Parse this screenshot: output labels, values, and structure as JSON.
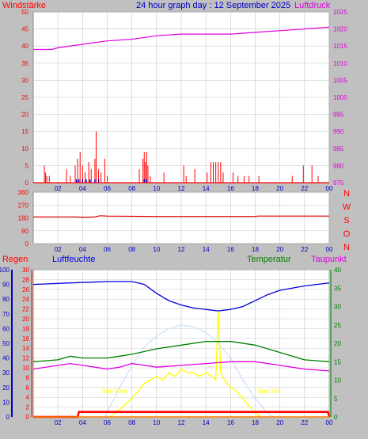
{
  "header": {
    "left_label": "Windstärke",
    "title": "24 hour graph day : 12 September 2025",
    "right_label": "Luftdruck"
  },
  "colors": {
    "background": "#c0c0c0",
    "plot_bg": "#ffffff",
    "grid": "#c8c8c8",
    "wind": "#ff0000",
    "gust": "#0000c8",
    "pressure": "#e000e0",
    "direction": "#e00000",
    "humidity": "#0000e0",
    "temperature": "#008000",
    "dewpoint": "#e000e0",
    "sun": "#ffff00",
    "sun_curve": "#c8e0ff",
    "rain": "#ff0000",
    "title": "#0000c8"
  },
  "chart_data": [
    {
      "type": "bar",
      "name": "wind",
      "ylabel": "Windstärke",
      "y2label": "Luftdruck",
      "ylim": [
        0,
        50
      ],
      "yticks": [
        "0",
        "5",
        "10",
        "15",
        "20",
        "25",
        "30",
        "35",
        "40",
        "45",
        "50"
      ],
      "y2lim": [
        975,
        1025
      ],
      "y2ticks": [
        "975",
        "980",
        "985",
        "990",
        "995",
        "1000",
        "1005",
        "1010",
        "1015",
        "1020",
        "1025"
      ],
      "xticks": [
        "02",
        "04",
        "06",
        "08",
        "10",
        "12",
        "14",
        "16",
        "18",
        "20",
        "22",
        "00"
      ],
      "wind_bars": [
        [
          0.9,
          5
        ],
        [
          1.0,
          3
        ],
        [
          1.1,
          2
        ],
        [
          1.3,
          2
        ],
        [
          2.7,
          4
        ],
        [
          3.0,
          2
        ],
        [
          3.4,
          5
        ],
        [
          3.6,
          7
        ],
        [
          3.8,
          9
        ],
        [
          4.0,
          5
        ],
        [
          4.2,
          3
        ],
        [
          4.5,
          6
        ],
        [
          4.7,
          4
        ],
        [
          5.0,
          7
        ],
        [
          5.1,
          15
        ],
        [
          5.3,
          4
        ],
        [
          5.5,
          3
        ],
        [
          5.8,
          7
        ],
        [
          6.0,
          2
        ],
        [
          8.6,
          4
        ],
        [
          8.9,
          7
        ],
        [
          9.0,
          9
        ],
        [
          9.1,
          6
        ],
        [
          9.2,
          9
        ],
        [
          9.3,
          5
        ],
        [
          9.5,
          2
        ],
        [
          10.6,
          3
        ],
        [
          12.2,
          5
        ],
        [
          12.4,
          2
        ],
        [
          13.1,
          4
        ],
        [
          14.1,
          3
        ],
        [
          14.4,
          6
        ],
        [
          14.6,
          6
        ],
        [
          14.8,
          6
        ],
        [
          15.0,
          6
        ],
        [
          15.2,
          6
        ],
        [
          15.4,
          3
        ],
        [
          16.2,
          3
        ],
        [
          16.6,
          2
        ],
        [
          17.1,
          2
        ],
        [
          17.5,
          2
        ],
        [
          18.3,
          2
        ],
        [
          21.0,
          2
        ],
        [
          21.9,
          5
        ],
        [
          22.6,
          5
        ],
        [
          23.1,
          2
        ]
      ],
      "gust_points": [
        [
          3.5,
          1
        ],
        [
          3.7,
          1
        ],
        [
          4.0,
          1
        ],
        [
          4.3,
          1
        ],
        [
          4.6,
          1
        ],
        [
          5.0,
          1
        ],
        [
          5.3,
          1
        ],
        [
          9.0,
          1
        ],
        [
          9.2,
          1
        ]
      ],
      "pressure": [
        [
          0,
          1014
        ],
        [
          1.5,
          1014
        ],
        [
          2,
          1014.5
        ],
        [
          4,
          1015.5
        ],
        [
          6,
          1016.5
        ],
        [
          8,
          1017
        ],
        [
          10,
          1018
        ],
        [
          12,
          1018.5
        ],
        [
          14,
          1018.5
        ],
        [
          16,
          1018.5
        ],
        [
          18,
          1019
        ],
        [
          20,
          1019.5
        ],
        [
          22,
          1020
        ],
        [
          24,
          1020.5
        ]
      ]
    },
    {
      "type": "line",
      "name": "wind-direction",
      "ylim": [
        0,
        360
      ],
      "yticks": [
        "0",
        "90",
        "180",
        "270",
        "360"
      ],
      "direction_labels": [
        "N",
        "W",
        "S",
        "O",
        "N"
      ],
      "xticks": [
        "02",
        "04",
        "06",
        "08",
        "10",
        "12",
        "14",
        "16",
        "18",
        "20",
        "22",
        "00"
      ],
      "direction": [
        [
          0,
          187
        ],
        [
          3.5,
          187
        ],
        [
          4.0,
          185
        ],
        [
          5.0,
          187
        ],
        [
          5.4,
          195
        ],
        [
          6,
          193
        ],
        [
          10,
          190
        ],
        [
          14,
          190
        ],
        [
          18,
          190
        ],
        [
          18.2,
          193
        ],
        [
          24,
          193
        ]
      ]
    },
    {
      "type": "line",
      "name": "weather",
      "labels": {
        "rain": "Regen",
        "humidity": "Luftfeuchte",
        "temperature": "Temperatur",
        "dewpoint": "Taupunkt",
        "sunrise": "Sun Rise",
        "sunset": "Sun Set"
      },
      "humidity_ylim": [
        0,
        100
      ],
      "humidity_ticks": [
        "0",
        "10",
        "20",
        "30",
        "40",
        "50",
        "60",
        "70",
        "80",
        "90",
        "100"
      ],
      "rain_ylim": [
        0,
        30
      ],
      "rain_ticks": [
        "0",
        "2",
        "4",
        "6",
        "8",
        "10",
        "12",
        "14",
        "16",
        "18",
        "20",
        "22",
        "24",
        "26",
        "28",
        "30"
      ],
      "temp_ylim": [
        0,
        40
      ],
      "temp_ticks": [
        "0",
        "5",
        "10",
        "15",
        "20",
        "25",
        "30",
        "35",
        "40"
      ],
      "xticks": [
        "02",
        "04",
        "06",
        "08",
        "10",
        "12",
        "14",
        "16",
        "18",
        "20",
        "22",
        "00"
      ],
      "humidity": [
        [
          0,
          90
        ],
        [
          3,
          91
        ],
        [
          6,
          92
        ],
        [
          8,
          92
        ],
        [
          8.5,
          91
        ],
        [
          9,
          90
        ],
        [
          10,
          84
        ],
        [
          11,
          79
        ],
        [
          12,
          76
        ],
        [
          13,
          74
        ],
        [
          14,
          73
        ],
        [
          15,
          72
        ],
        [
          16,
          73
        ],
        [
          17,
          75
        ],
        [
          18,
          79
        ],
        [
          19,
          83
        ],
        [
          20,
          86
        ],
        [
          22,
          89
        ],
        [
          23,
          90
        ],
        [
          24,
          91
        ]
      ],
      "temperature": [
        [
          0,
          15
        ],
        [
          2,
          15.5
        ],
        [
          3,
          16.5
        ],
        [
          4,
          16
        ],
        [
          6,
          16
        ],
        [
          7,
          16.5
        ],
        [
          8,
          17
        ],
        [
          10,
          18.5
        ],
        [
          12,
          19.5
        ],
        [
          14,
          20.5
        ],
        [
          15,
          20.5
        ],
        [
          16,
          20.5
        ],
        [
          18,
          19.5
        ],
        [
          20,
          17.5
        ],
        [
          22,
          15.5
        ],
        [
          24,
          15
        ]
      ],
      "dewpoint": [
        [
          0,
          13
        ],
        [
          2,
          14
        ],
        [
          3,
          14.5
        ],
        [
          4,
          14
        ],
        [
          5,
          13.5
        ],
        [
          6,
          13
        ],
        [
          7,
          13.5
        ],
        [
          8,
          14.5
        ],
        [
          9,
          14
        ],
        [
          10,
          13.5
        ],
        [
          12,
          14
        ],
        [
          14,
          14.5
        ],
        [
          16,
          15
        ],
        [
          18,
          15
        ],
        [
          20,
          14
        ],
        [
          22,
          13
        ],
        [
          24,
          12.5
        ]
      ],
      "solar_clear_sky": [
        [
          5.8,
          0
        ],
        [
          7,
          8
        ],
        [
          8,
          14
        ],
        [
          9,
          19
        ],
        [
          10,
          22
        ],
        [
          11,
          24
        ],
        [
          12,
          25
        ],
        [
          13,
          24.5
        ],
        [
          14,
          23
        ],
        [
          15,
          20
        ],
        [
          16,
          16
        ],
        [
          17,
          10
        ],
        [
          18,
          5
        ],
        [
          19,
          1
        ],
        [
          19.5,
          0
        ]
      ],
      "solar": [
        [
          6.2,
          0
        ],
        [
          7,
          2
        ],
        [
          8,
          5
        ],
        [
          8.5,
          7
        ],
        [
          9,
          9
        ],
        [
          9.5,
          10
        ],
        [
          10,
          11
        ],
        [
          10.5,
          10
        ],
        [
          11,
          12
        ],
        [
          11.5,
          11
        ],
        [
          12,
          13
        ],
        [
          12.5,
          12
        ],
        [
          13,
          12
        ],
        [
          13.5,
          11
        ],
        [
          14,
          12
        ],
        [
          14.5,
          11
        ],
        [
          14.8,
          10
        ],
        [
          15,
          29
        ],
        [
          15.2,
          12
        ],
        [
          15.5,
          10
        ],
        [
          16,
          8
        ],
        [
          16.5,
          7
        ],
        [
          17,
          5
        ],
        [
          17.5,
          3
        ],
        [
          18,
          1
        ],
        [
          18.5,
          0
        ]
      ],
      "rain_total": [
        [
          0,
          0
        ],
        [
          3.6,
          0
        ],
        [
          3.7,
          1
        ],
        [
          23.9,
          1
        ],
        [
          24,
          0
        ]
      ],
      "sunrise_hour": 6.6,
      "sunset_hour": 19.1
    }
  ]
}
